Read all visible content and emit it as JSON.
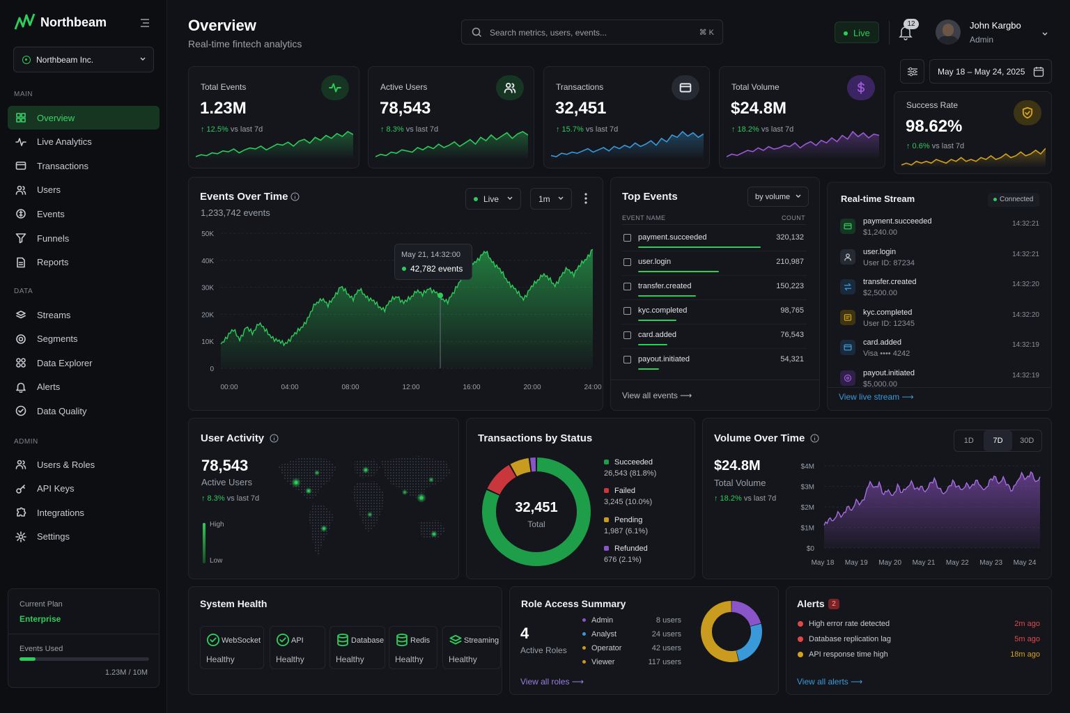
{
  "app": {
    "name": "Northbeam"
  },
  "org": {
    "name": "Northbeam Inc."
  },
  "sidebar": {
    "sections": [
      {
        "label": "MAIN",
        "items": [
          {
            "label": "Overview",
            "icon": "grid-icon",
            "active": true
          },
          {
            "label": "Live Analytics",
            "icon": "pulse-icon"
          },
          {
            "label": "Transactions",
            "icon": "card-icon"
          },
          {
            "label": "Users",
            "icon": "users-icon"
          },
          {
            "label": "Events",
            "icon": "coins-icon"
          },
          {
            "label": "Funnels",
            "icon": "funnel-icon"
          },
          {
            "label": "Reports",
            "icon": "report-icon"
          }
        ]
      },
      {
        "label": "DATA",
        "items": [
          {
            "label": "Streams",
            "icon": "stream-icon"
          },
          {
            "label": "Segments",
            "icon": "segments-icon"
          },
          {
            "label": "Data Explorer",
            "icon": "explorer-icon"
          },
          {
            "label": "Alerts",
            "icon": "bell-icon"
          },
          {
            "label": "Data Quality",
            "icon": "check-circle-icon"
          }
        ]
      },
      {
        "label": "ADMIN",
        "items": [
          {
            "label": "Users & Roles",
            "icon": "users-icon"
          },
          {
            "label": "API Keys",
            "icon": "key-icon"
          },
          {
            "label": "Integrations",
            "icon": "puzzle-icon"
          },
          {
            "label": "Settings",
            "icon": "gear-icon"
          }
        ]
      }
    ],
    "plan": {
      "label": "Current Plan",
      "name": "Enterprise",
      "usage_label": "Events Used",
      "usage_value": "1.23M / 10M",
      "usage_fraction": 0.123
    }
  },
  "header": {
    "title": "Overview",
    "subtitle": "Real-time fintech analytics",
    "search_placeholder": "Search metrics, users, events...",
    "search_shortcut": "⌘ K",
    "live_label": "Live",
    "notifications": "12",
    "user": {
      "name": "John Kargbo",
      "role": "Admin"
    },
    "date_range": "May 18 – May 24, 2025"
  },
  "kpis": [
    {
      "title": "Total Events",
      "value": "1.23M",
      "delta": "↑ 12.5%",
      "delta_suffix": "vs last 7d",
      "icon": "pulse-icon",
      "color": "#2ecc5b",
      "spark": [
        4,
        6,
        5,
        8,
        7,
        10,
        9,
        12,
        8,
        11,
        13,
        12,
        15,
        11,
        14,
        17,
        16,
        19,
        15,
        20,
        22,
        18,
        24,
        21,
        26,
        23,
        28,
        25,
        30,
        27
      ]
    },
    {
      "title": "Active Users",
      "value": "78,543",
      "delta": "↑ 8.3%",
      "delta_suffix": "vs last 7d",
      "icon": "users-icon",
      "color": "#2ecc5b",
      "spark": [
        5,
        7,
        6,
        9,
        8,
        11,
        10,
        9,
        13,
        11,
        14,
        12,
        16,
        13,
        15,
        18,
        14,
        17,
        20,
        16,
        22,
        19,
        24,
        20,
        23,
        26,
        21,
        25,
        27,
        24
      ]
    },
    {
      "title": "Transactions",
      "value": "32,451",
      "delta": "↑ 15.7%",
      "delta_suffix": "vs last 7d",
      "icon": "card-icon",
      "color": "#3a9ad9",
      "spark": [
        6,
        5,
        8,
        7,
        9,
        8,
        10,
        12,
        9,
        11,
        13,
        10,
        14,
        12,
        15,
        13,
        17,
        14,
        16,
        19,
        15,
        21,
        18,
        24,
        22,
        27,
        23,
        26,
        22,
        25
      ]
    },
    {
      "title": "Total Volume",
      "value": "$24.8M",
      "delta": "↑ 18.2%",
      "delta_suffix": "vs last 7d",
      "icon": "dollar-icon",
      "color": "#9b59d6",
      "spark": [
        5,
        7,
        6,
        8,
        10,
        9,
        12,
        10,
        13,
        11,
        12,
        14,
        13,
        16,
        12,
        15,
        17,
        14,
        18,
        16,
        20,
        17,
        22,
        19,
        25,
        21,
        24,
        20,
        23,
        22
      ]
    },
    {
      "title": "Success Rate",
      "value": "98.62%",
      "delta": "↑ 0.6%",
      "delta_suffix": "vs last 7d",
      "icon": "shield-icon",
      "color": "#d4a21c",
      "spark": [
        10,
        11,
        10,
        12,
        11,
        12,
        11,
        13,
        12,
        11,
        13,
        12,
        14,
        12,
        13,
        12,
        14,
        13,
        15,
        13,
        14,
        16,
        14,
        15,
        17,
        15,
        16,
        18,
        16,
        19
      ]
    }
  ],
  "events_over_time": {
    "title": "Events Over Time",
    "subtitle": "1,233,742 events",
    "live_label": "Live",
    "interval": "1m",
    "tooltip": {
      "time": "May 21, 14:32:00",
      "value": "42,782 events"
    },
    "chart_data": {
      "type": "area",
      "x_ticks": [
        "00:00",
        "04:00",
        "08:00",
        "12:00",
        "16:00",
        "20:00",
        "24:00"
      ],
      "y_ticks": [
        "0",
        "10K",
        "20K",
        "30K",
        "40K",
        "50K"
      ],
      "ylim": [
        0,
        50000
      ],
      "values": [
        9000,
        12000,
        14000,
        11000,
        15000,
        13000,
        17000,
        14000,
        12000,
        10000,
        9000,
        11000,
        13000,
        16000,
        19000,
        24000,
        26000,
        23000,
        27000,
        30000,
        28000,
        26000,
        29000,
        27000,
        25000,
        23000,
        22000,
        25000,
        27000,
        24000,
        26000,
        29000,
        27000,
        30000,
        28000,
        26000,
        25000,
        28000,
        33000,
        36000,
        39000,
        41000,
        43000,
        40000,
        37000,
        34000,
        31000,
        28000,
        26000,
        29000,
        32000,
        35000,
        33000,
        31000,
        34000,
        37000,
        35000,
        38000,
        41000,
        44000
      ]
    }
  },
  "top_events": {
    "title": "Top Events",
    "filter": "by volume",
    "col_name": "EVENT NAME",
    "col_count": "COUNT",
    "rows": [
      {
        "name": "payment.succeeded",
        "count": "320,132",
        "fraction": 1.0
      },
      {
        "name": "user.login",
        "count": "210,987",
        "fraction": 0.66
      },
      {
        "name": "transfer.created",
        "count": "150,223",
        "fraction": 0.47
      },
      {
        "name": "kyc.completed",
        "count": "98,765",
        "fraction": 0.31
      },
      {
        "name": "card.added",
        "count": "76,543",
        "fraction": 0.24
      },
      {
        "name": "payout.initiated",
        "count": "54,321",
        "fraction": 0.17
      }
    ],
    "link": "View all events"
  },
  "stream": {
    "title": "Real-time Stream",
    "status": "Connected",
    "items": [
      {
        "name": "payment.succeeded",
        "sub": "$1,240.00",
        "time": "14:32:21",
        "color": "#2ecc5b",
        "icon": "card-icon"
      },
      {
        "name": "user.login",
        "sub": "User ID: 87234",
        "time": "14:32:21",
        "color": "#c9ccd3",
        "icon": "user-icon"
      },
      {
        "name": "transfer.created",
        "sub": "$2,500.00",
        "time": "14:32:20",
        "color": "#3a9ad9",
        "icon": "transfer-icon"
      },
      {
        "name": "kyc.completed",
        "sub": "User ID: 12345",
        "time": "14:32:20",
        "color": "#d4a21c",
        "icon": "id-icon"
      },
      {
        "name": "card.added",
        "sub": "Visa •••• 4242",
        "time": "14:32:19",
        "color": "#3a9ad9",
        "icon": "card-icon"
      },
      {
        "name": "payout.initiated",
        "sub": "$5,000.00",
        "time": "14:32:19",
        "color": "#9b59d6",
        "icon": "payout-icon"
      }
    ],
    "link": "View live stream"
  },
  "user_activity": {
    "title": "User Activity",
    "value": "78,543",
    "label": "Active Users",
    "delta": "↑ 8.3%",
    "delta_suffix": "vs last 7d",
    "legend_high": "High",
    "legend_low": "Low"
  },
  "tx_status": {
    "title": "Transactions by Status",
    "total": "32,451",
    "total_label": "Total",
    "chart_data": {
      "type": "pie",
      "slices": [
        {
          "label": "Succeeded",
          "value": 26543,
          "display": "26,543",
          "pct": "(81.8%)",
          "color": "#1f9e4a"
        },
        {
          "label": "Failed",
          "value": 3245,
          "display": "3,245",
          "pct": "(10.0%)",
          "color": "#c9363b"
        },
        {
          "label": "Pending",
          "value": 1987,
          "display": "1,987",
          "pct": "(6.1%)",
          "color": "#c99b1f"
        },
        {
          "label": "Refunded",
          "value": 676,
          "display": "676",
          "pct": "(2.1%)",
          "color": "#8a55c9"
        }
      ]
    }
  },
  "volume": {
    "title": "Volume Over Time",
    "value": "$24.8M",
    "label": "Total Volume",
    "delta": "↑ 18.2%",
    "delta_suffix": "vs last 7d",
    "ranges": [
      "1D",
      "7D",
      "30D"
    ],
    "active_range": "7D",
    "chart_data": {
      "type": "area",
      "x_ticks": [
        "May 18",
        "May 19",
        "May 20",
        "May 21",
        "May 22",
        "May 23",
        "May 24"
      ],
      "y_ticks": [
        "$0",
        "$1M",
        "$2M",
        "$3M",
        "$4M"
      ],
      "ylim": [
        0,
        4
      ],
      "values": [
        1.1,
        1.4,
        1.3,
        1.7,
        1.5,
        2.0,
        1.8,
        2.3,
        2.1,
        2.6,
        3.2,
        2.9,
        3.1,
        2.6,
        2.8,
        2.5,
        3.0,
        2.7,
        2.9,
        3.2,
        2.8,
        3.0,
        2.7,
        3.1,
        3.3,
        2.9,
        2.6,
        2.9,
        3.2,
        3.0,
        2.8,
        3.1,
        2.9,
        3.3,
        3.0,
        2.8,
        3.2,
        3.5,
        3.1,
        3.4,
        3.0,
        2.8,
        3.2,
        3.6,
        3.3,
        3.7,
        3.2,
        3.4
      ]
    }
  },
  "health": {
    "title": "System Health",
    "items": [
      {
        "name": "WebSocket",
        "status": "Healthy",
        "icon": "check-icon"
      },
      {
        "name": "API",
        "status": "Healthy",
        "icon": "check-icon"
      },
      {
        "name": "Database",
        "status": "Healthy",
        "icon": "database-icon"
      },
      {
        "name": "Redis",
        "status": "Healthy",
        "icon": "database-icon"
      },
      {
        "name": "Streaming",
        "status": "Healthy",
        "icon": "stream-icon"
      }
    ]
  },
  "roles": {
    "title": "Role Access Summary",
    "count": "4",
    "count_label": "Active Roles",
    "items": [
      {
        "name": "Admin",
        "users": "8 users",
        "value": 8,
        "color": "#8a55c9"
      },
      {
        "name": "Analyst",
        "users": "24 users",
        "value": 24,
        "color": "#3a9ad9"
      },
      {
        "name": "Operator",
        "users": "42 users",
        "value": 42,
        "color": "#c99b1f"
      },
      {
        "name": "Viewer",
        "users": "117 users",
        "value": 117,
        "color": "#c99b1f"
      }
    ],
    "link": "View all roles"
  },
  "alerts": {
    "title": "Alerts",
    "count": "2",
    "items": [
      {
        "text": "High error rate detected",
        "time": "2m ago",
        "color": "#e04848"
      },
      {
        "text": "Database replication lag",
        "time": "5m ago",
        "color": "#e04848"
      },
      {
        "text": "API response time high",
        "time": "18m ago",
        "color": "#d4a21c"
      }
    ],
    "link": "View all alerts"
  }
}
